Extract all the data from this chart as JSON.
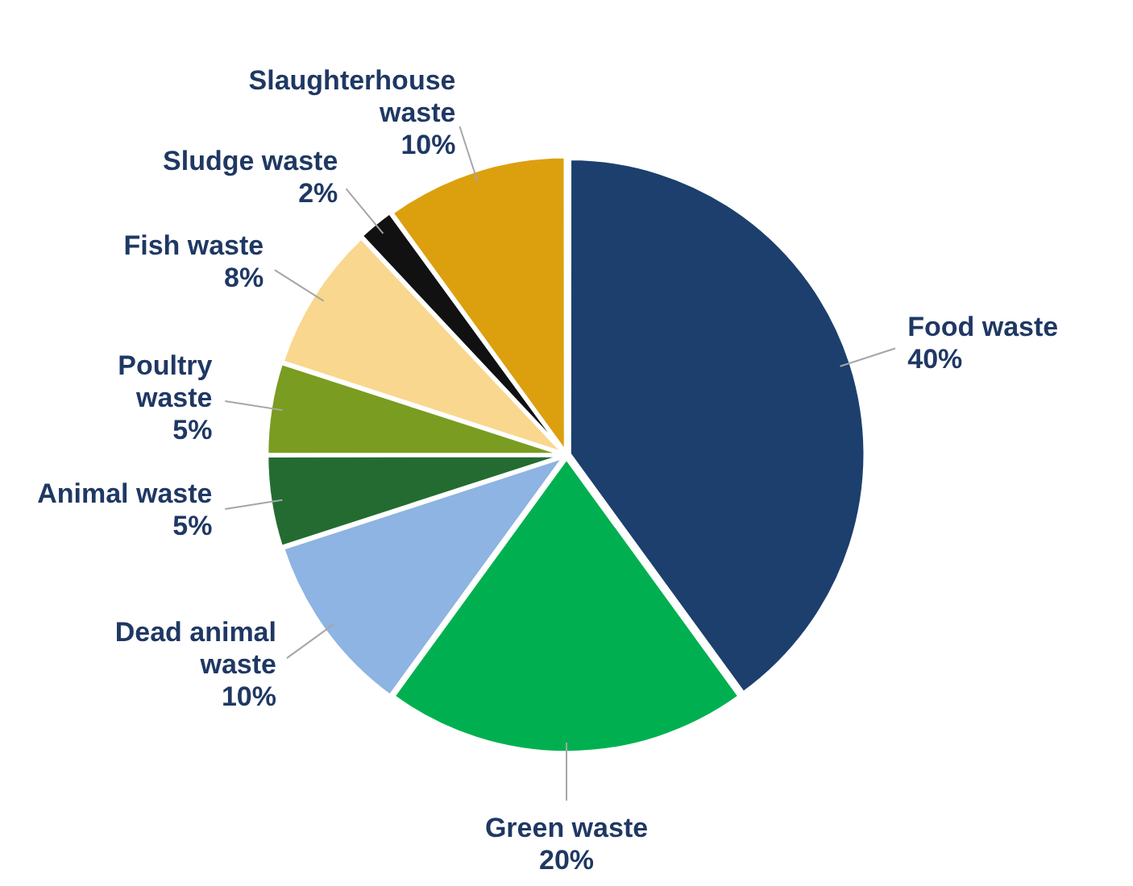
{
  "chart_data": {
    "type": "pie",
    "categories": [
      "Food waste",
      "Green waste",
      "Dead animal waste",
      "Animal waste",
      "Poultry waste",
      "Fish waste",
      "Sludge waste",
      "Slaughterhouse waste"
    ],
    "values": [
      40,
      20,
      10,
      5,
      5,
      8,
      2,
      10
    ],
    "colors": [
      "#1c3f6e",
      "#00b050",
      "#8db4e2",
      "#246b32",
      "#7a9c21",
      "#f9d78e",
      "#111111",
      "#dca00f"
    ],
    "value_labels": [
      "40%",
      "20%",
      "10%",
      "5%",
      "5%",
      "8%",
      "2%",
      "10%"
    ]
  }
}
